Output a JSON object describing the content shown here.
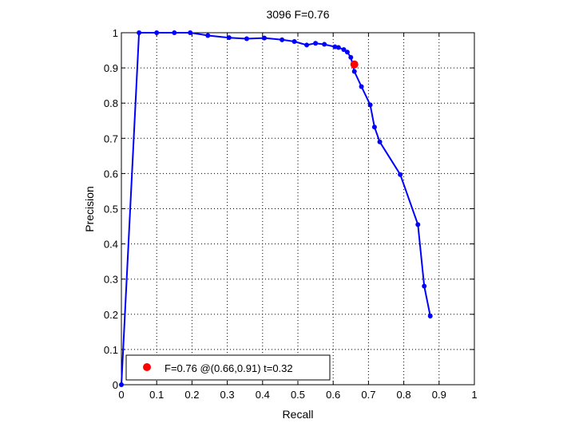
{
  "chart_data": {
    "type": "line",
    "title": "3096 F=0.76",
    "xlabel": "Recall",
    "ylabel": "Precision",
    "xlim": [
      0,
      1
    ],
    "ylim": [
      0,
      1
    ],
    "xticks": [
      "0",
      "0.1",
      "0.2",
      "0.3",
      "0.4",
      "0.5",
      "0.6",
      "0.7",
      "0.8",
      "0.9",
      "1"
    ],
    "yticks": [
      "0",
      "0.1",
      "0.2",
      "0.3",
      "0.4",
      "0.5",
      "0.6",
      "0.7",
      "0.8",
      "0.9",
      "1"
    ],
    "grid": true,
    "series": [
      {
        "color": "#0000ff",
        "marker": "dot",
        "points": [
          [
            0.875,
            0.195
          ],
          [
            0.858,
            0.28
          ],
          [
            0.84,
            0.455
          ],
          [
            0.79,
            0.597
          ],
          [
            0.732,
            0.69
          ],
          [
            0.717,
            0.732
          ],
          [
            0.705,
            0.795
          ],
          [
            0.68,
            0.847
          ],
          [
            0.66,
            0.89
          ],
          [
            0.65,
            0.93
          ],
          [
            0.64,
            0.945
          ],
          [
            0.63,
            0.952
          ],
          [
            0.615,
            0.958
          ],
          [
            0.605,
            0.96
          ],
          [
            0.575,
            0.967
          ],
          [
            0.55,
            0.97
          ],
          [
            0.525,
            0.965
          ],
          [
            0.49,
            0.975
          ],
          [
            0.455,
            0.98
          ],
          [
            0.405,
            0.985
          ],
          [
            0.355,
            0.983
          ],
          [
            0.305,
            0.986
          ],
          [
            0.245,
            0.992
          ],
          [
            0.195,
            1.0
          ],
          [
            0.15,
            1.0
          ],
          [
            0.1,
            1.0
          ],
          [
            0.05,
            1.0
          ],
          [
            0.0,
            0.0
          ]
        ]
      }
    ],
    "highlight": {
      "x": 0.66,
      "y": 0.91,
      "color": "#ff0000",
      "label": "F=0.76 @(0.66,0.91) t=0.32"
    },
    "legend_position": "bottom-left"
  }
}
